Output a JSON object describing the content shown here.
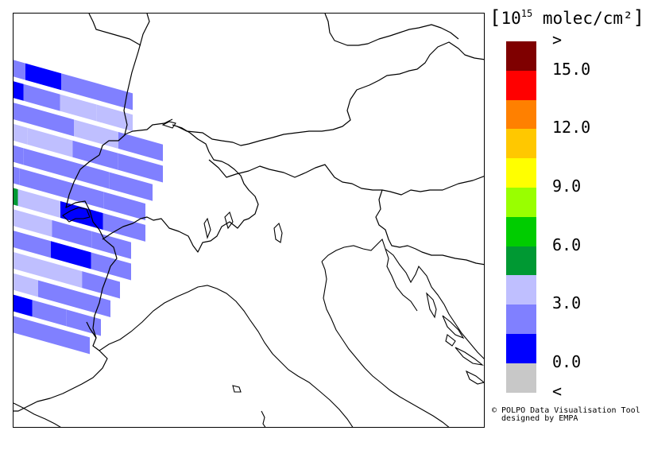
{
  "legend": {
    "unit_prefix": "10",
    "unit_exponent": "15",
    "unit_rest": "molec/cm²",
    "bracket_open": "[",
    "bracket_close": "]",
    "colors": [
      "#7f0000",
      "#ff0000",
      "#ff8000",
      "#ffc800",
      "#ffff00",
      "#99ff00",
      "#00cc00",
      "#009933",
      "#bfbfff",
      "#8080ff",
      "#0000ff",
      "#c8c8c8"
    ],
    "labels": [
      {
        "text": ">",
        "pos": 0
      },
      {
        "text": "15.0",
        "pos": 1
      },
      {
        "text": "12.0",
        "pos": 3
      },
      {
        "text": "9.0",
        "pos": 5
      },
      {
        "text": "6.0",
        "pos": 7
      },
      {
        "text": "3.0",
        "pos": 9
      },
      {
        "text": "0.0",
        "pos": 11
      },
      {
        "text": "<",
        "pos": 12
      }
    ]
  },
  "credit": {
    "line1": "© POLPO Data Visualisation Tool",
    "line2": "  designed by EMPA"
  },
  "map": {
    "colors": {
      "blue": "#0000ff",
      "mid": "#8080ff",
      "light": "#bfbfff",
      "green": "#009933"
    },
    "strips": [
      [
        "mid",
        "blue",
        "mid",
        "mid"
      ],
      [
        "blue",
        "mid",
        "light",
        "light"
      ],
      [
        "mid",
        "mid",
        "light",
        "mid"
      ],
      [
        "light",
        "light",
        "mid",
        "mid"
      ],
      [
        "mid",
        "mid",
        "mid",
        "mid"
      ],
      [
        "mid",
        "mid",
        "mid",
        "mid"
      ],
      [
        "green",
        "light",
        "blue",
        "mid"
      ],
      [
        "mid",
        "light",
        "mid",
        "mid"
      ],
      [
        "mid",
        "mid",
        "blue",
        "mid"
      ],
      [
        "green",
        "light",
        "light",
        "mid"
      ],
      [
        "mid",
        "light",
        "mid",
        "mid"
      ],
      [
        "green",
        "blue",
        "mid",
        "mid"
      ],
      [
        "green",
        "mid",
        "mid",
        "mid"
      ]
    ]
  }
}
